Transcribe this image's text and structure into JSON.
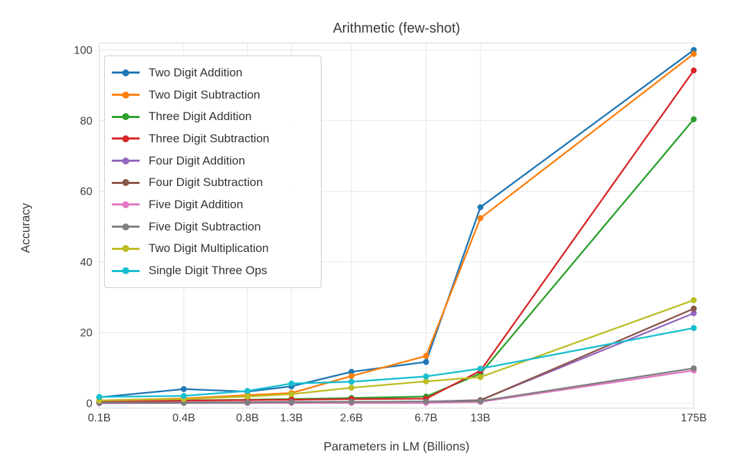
{
  "figure": {
    "title": "Arithmetic (few-shot)",
    "xlabel": "Parameters in LM (Billions)",
    "ylabel": "Accuracy"
  },
  "chart_data": {
    "type": "line",
    "title": "Arithmetic (few-shot)",
    "xlabel": "Parameters in LM (Billions)",
    "ylabel": "Accuracy",
    "x_scale": "log",
    "grid": true,
    "legend_position": "upper left",
    "x_values": [
      0.125,
      0.35,
      0.76,
      1.3,
      2.7,
      6.7,
      13,
      175
    ],
    "x_tick_labels": [
      "0.1B",
      "0.4B",
      "0.8B",
      "1.3B",
      "2.6B",
      "6.7B",
      "13B",
      "175B"
    ],
    "y_ticks": [
      0,
      20,
      40,
      60,
      80,
      100
    ],
    "ylim": [
      0,
      100
    ],
    "series": [
      {
        "name": "Two Digit Addition",
        "color": "#1f77b4",
        "values": [
          1.7,
          4.0,
          3.3,
          4.8,
          8.9,
          11.7,
          55.5,
          100.0
        ]
      },
      {
        "name": "Two Digit Subtraction",
        "color": "#ff7f0e",
        "values": [
          0.8,
          1.4,
          2.3,
          2.9,
          7.7,
          13.4,
          52.4,
          98.9
        ]
      },
      {
        "name": "Three Digit Addition",
        "color": "#2ca02c",
        "values": [
          0.4,
          0.8,
          1.0,
          1.2,
          1.5,
          1.9,
          8.4,
          80.4
        ]
      },
      {
        "name": "Three Digit Subtraction",
        "color": "#d62728",
        "values": [
          0.5,
          0.8,
          0.9,
          1.0,
          1.2,
          1.3,
          9.2,
          94.2
        ]
      },
      {
        "name": "Four Digit Addition",
        "color": "#9467bd",
        "values": [
          0.2,
          0.3,
          0.3,
          0.4,
          0.4,
          0.5,
          0.9,
          25.5
        ]
      },
      {
        "name": "Four Digit Subtraction",
        "color": "#8c564b",
        "values": [
          0.1,
          0.2,
          0.2,
          0.3,
          0.4,
          0.4,
          0.8,
          26.8
        ]
      },
      {
        "name": "Five Digit Addition",
        "color": "#e377c2",
        "values": [
          0.0,
          0.1,
          0.1,
          0.1,
          0.1,
          0.1,
          0.4,
          9.3
        ]
      },
      {
        "name": "Five Digit Subtraction",
        "color": "#7f7f7f",
        "values": [
          0.1,
          0.1,
          0.2,
          0.3,
          0.4,
          0.5,
          0.6,
          9.9
        ]
      },
      {
        "name": "Two Digit Multiplication",
        "color": "#bcbd22",
        "values": [
          0.8,
          1.2,
          1.9,
          2.6,
          4.4,
          6.2,
          7.4,
          29.2
        ]
      },
      {
        "name": "Single Digit Three Ops",
        "color": "#17becf",
        "values": [
          1.8,
          2.1,
          3.5,
          5.6,
          6.1,
          7.6,
          9.8,
          21.3
        ]
      }
    ],
    "style": {
      "grid_color": "#e7e7ea",
      "spine_color": "#dcdce0",
      "background": "#ffffff"
    }
  }
}
